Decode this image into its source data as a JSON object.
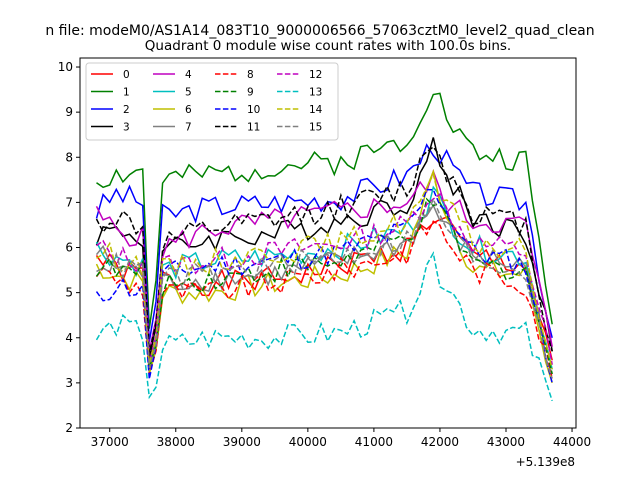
{
  "chart_data": {
    "type": "line",
    "suptitle": "n file: modeM0/AS1A14_083T10_9000006566_57063cztM0_level2_quad_clean",
    "title": "Quadrant 0 module wise count rates with 100.0s bins.",
    "xlabel": "",
    "ylabel": "",
    "offset_label": "+5.139e8",
    "xlim": [
      36550,
      44060
    ],
    "ylim": [
      2,
      10.2
    ],
    "xticks": [
      37000,
      38000,
      39000,
      40000,
      41000,
      42000,
      43000,
      44000
    ],
    "yticks": [
      2,
      3,
      4,
      5,
      6,
      7,
      8,
      9,
      10
    ],
    "grid": false,
    "legend": {
      "placement": "top-left",
      "columns": 4
    },
    "x_range": [
      36800,
      43700
    ],
    "series": [
      {
        "name": "0",
        "color": "#ff0000",
        "dash": "solid",
        "knots": [
          [
            36800,
            5.8
          ],
          [
            37100,
            5.5
          ],
          [
            37500,
            5.4
          ],
          [
            37620,
            3.0
          ],
          [
            37800,
            5.3
          ],
          [
            38500,
            5.2
          ],
          [
            39500,
            5.3
          ],
          [
            40500,
            5.6
          ],
          [
            41500,
            6.0
          ],
          [
            41900,
            6.7
          ],
          [
            42100,
            6.5
          ],
          [
            42500,
            5.8
          ],
          [
            43300,
            5.6
          ],
          [
            43700,
            3.5
          ]
        ]
      },
      {
        "name": "1",
        "color": "#008000",
        "dash": "solid",
        "knots": [
          [
            36800,
            7.5
          ],
          [
            37100,
            7.6
          ],
          [
            37500,
            7.7
          ],
          [
            37620,
            3.5
          ],
          [
            37800,
            7.5
          ],
          [
            38500,
            7.6
          ],
          [
            39500,
            7.8
          ],
          [
            40500,
            7.9
          ],
          [
            41500,
            8.4
          ],
          [
            41900,
            9.6
          ],
          [
            42100,
            8.9
          ],
          [
            42500,
            8.1
          ],
          [
            43300,
            7.9
          ],
          [
            43700,
            4.3
          ]
        ]
      },
      {
        "name": "2",
        "color": "#0000ff",
        "dash": "solid",
        "knots": [
          [
            36800,
            6.8
          ],
          [
            37100,
            7.2
          ],
          [
            37500,
            7.0
          ],
          [
            37620,
            3.3
          ],
          [
            37800,
            6.7
          ],
          [
            38500,
            6.9
          ],
          [
            39500,
            7.0
          ],
          [
            40500,
            7.1
          ],
          [
            41500,
            7.6
          ],
          [
            41900,
            8.3
          ],
          [
            42100,
            7.9
          ],
          [
            42500,
            7.2
          ],
          [
            43300,
            7.0
          ],
          [
            43700,
            4.0
          ]
        ]
      },
      {
        "name": "3",
        "color": "#000000",
        "dash": "solid",
        "knots": [
          [
            36800,
            6.3
          ],
          [
            37100,
            6.4
          ],
          [
            37500,
            6.2
          ],
          [
            37620,
            3.0
          ],
          [
            37800,
            5.9
          ],
          [
            38500,
            6.2
          ],
          [
            39500,
            6.3
          ],
          [
            40500,
            6.6
          ],
          [
            41500,
            7.0
          ],
          [
            41900,
            8.2
          ],
          [
            42100,
            7.6
          ],
          [
            42500,
            6.7
          ],
          [
            43300,
            6.3
          ],
          [
            43700,
            3.7
          ]
        ]
      },
      {
        "name": "4",
        "color": "#bf00bf",
        "dash": "solid",
        "knots": [
          [
            36800,
            6.7
          ],
          [
            37100,
            6.4
          ],
          [
            37500,
            6.2
          ],
          [
            37620,
            3.2
          ],
          [
            37800,
            6.0
          ],
          [
            38500,
            6.4
          ],
          [
            39500,
            6.6
          ],
          [
            40500,
            6.8
          ],
          [
            41500,
            7.0
          ],
          [
            41900,
            7.5
          ],
          [
            42100,
            7.0
          ],
          [
            42500,
            6.6
          ],
          [
            43300,
            6.5
          ],
          [
            43700,
            3.8
          ]
        ]
      },
      {
        "name": "5",
        "color": "#00bfbf",
        "dash": "solid",
        "knots": [
          [
            36800,
            6.0
          ],
          [
            37100,
            5.8
          ],
          [
            37500,
            5.6
          ],
          [
            37620,
            2.9
          ],
          [
            37800,
            5.5
          ],
          [
            38500,
            5.7
          ],
          [
            39500,
            5.8
          ],
          [
            40500,
            6.0
          ],
          [
            41500,
            6.4
          ],
          [
            41900,
            7.2
          ],
          [
            42100,
            6.7
          ],
          [
            42500,
            6.0
          ],
          [
            43300,
            5.8
          ],
          [
            43700,
            3.3
          ]
        ]
      },
      {
        "name": "6",
        "color": "#bfbf00",
        "dash": "solid",
        "knots": [
          [
            36800,
            5.6
          ],
          [
            37100,
            5.4
          ],
          [
            37500,
            5.2
          ],
          [
            37620,
            2.8
          ],
          [
            37800,
            5.0
          ],
          [
            38500,
            5.0
          ],
          [
            39500,
            5.2
          ],
          [
            40500,
            5.4
          ],
          [
            41500,
            5.9
          ],
          [
            41900,
            7.6
          ],
          [
            42100,
            6.8
          ],
          [
            42500,
            5.5
          ],
          [
            43300,
            5.4
          ],
          [
            43700,
            3.0
          ]
        ]
      },
      {
        "name": "7",
        "color": "#808080",
        "dash": "solid",
        "knots": [
          [
            36800,
            5.9
          ],
          [
            37100,
            5.6
          ],
          [
            37500,
            5.4
          ],
          [
            37620,
            2.9
          ],
          [
            37800,
            5.2
          ],
          [
            38500,
            5.3
          ],
          [
            39500,
            5.4
          ],
          [
            40500,
            5.7
          ],
          [
            41500,
            6.1
          ],
          [
            41900,
            6.9
          ],
          [
            42100,
            6.4
          ],
          [
            42500,
            5.8
          ],
          [
            43300,
            5.6
          ],
          [
            43700,
            3.2
          ]
        ]
      },
      {
        "name": "8",
        "color": "#ff0000",
        "dash": "dashed",
        "knots": [
          [
            36800,
            5.5
          ],
          [
            37100,
            5.3
          ],
          [
            37500,
            5.1
          ],
          [
            37620,
            2.8
          ],
          [
            37800,
            5.0
          ],
          [
            38500,
            5.0
          ],
          [
            39500,
            5.2
          ],
          [
            40500,
            5.5
          ],
          [
            41500,
            5.9
          ],
          [
            41900,
            6.6
          ],
          [
            42100,
            6.2
          ],
          [
            42500,
            5.5
          ],
          [
            43300,
            5.2
          ],
          [
            43700,
            3.1
          ]
        ]
      },
      {
        "name": "9",
        "color": "#008000",
        "dash": "dashed",
        "knots": [
          [
            36800,
            5.6
          ],
          [
            37100,
            5.5
          ],
          [
            37500,
            5.4
          ],
          [
            37620,
            2.9
          ],
          [
            37800,
            5.2
          ],
          [
            38500,
            5.3
          ],
          [
            39500,
            5.5
          ],
          [
            40500,
            5.7
          ],
          [
            41500,
            6.2
          ],
          [
            41900,
            7.0
          ],
          [
            42100,
            6.5
          ],
          [
            42500,
            5.6
          ],
          [
            43300,
            5.5
          ],
          [
            43700,
            3.2
          ]
        ]
      },
      {
        "name": "10",
        "color": "#0000ff",
        "dash": "dashed",
        "knots": [
          [
            36800,
            4.8
          ],
          [
            37100,
            5.2
          ],
          [
            37500,
            5.0
          ],
          [
            37620,
            2.7
          ],
          [
            37800,
            5.4
          ],
          [
            38500,
            5.6
          ],
          [
            39500,
            5.7
          ],
          [
            40500,
            5.9
          ],
          [
            41500,
            6.4
          ],
          [
            41900,
            7.4
          ],
          [
            42100,
            6.8
          ],
          [
            42500,
            5.9
          ],
          [
            43300,
            5.6
          ],
          [
            43700,
            3.0
          ]
        ]
      },
      {
        "name": "11",
        "color": "#000000",
        "dash": "dashed",
        "knots": [
          [
            36800,
            6.5
          ],
          [
            37100,
            6.7
          ],
          [
            37500,
            6.4
          ],
          [
            37620,
            3.1
          ],
          [
            37800,
            6.1
          ],
          [
            38500,
            6.4
          ],
          [
            39500,
            6.6
          ],
          [
            40500,
            6.9
          ],
          [
            41500,
            7.3
          ],
          [
            41900,
            8.4
          ],
          [
            42100,
            7.7
          ],
          [
            42500,
            6.8
          ],
          [
            43300,
            6.5
          ],
          [
            43700,
            3.7
          ]
        ]
      },
      {
        "name": "12",
        "color": "#bf00bf",
        "dash": "dashed",
        "knots": [
          [
            36800,
            6.0
          ],
          [
            37100,
            5.8
          ],
          [
            37500,
            5.7
          ],
          [
            37620,
            3.0
          ],
          [
            37800,
            5.6
          ],
          [
            38500,
            5.7
          ],
          [
            39500,
            5.9
          ],
          [
            40500,
            6.1
          ],
          [
            41500,
            6.5
          ],
          [
            41900,
            7.3
          ],
          [
            42100,
            6.8
          ],
          [
            42500,
            6.1
          ],
          [
            43300,
            5.9
          ],
          [
            43700,
            3.4
          ]
        ]
      },
      {
        "name": "13",
        "color": "#00bfbf",
        "dash": "dashed",
        "knots": [
          [
            36800,
            4.0
          ],
          [
            37100,
            4.3
          ],
          [
            37500,
            4.1
          ],
          [
            37620,
            2.4
          ],
          [
            37800,
            3.8
          ],
          [
            38500,
            4.0
          ],
          [
            39500,
            4.0
          ],
          [
            40500,
            4.1
          ],
          [
            41500,
            4.6
          ],
          [
            41900,
            5.6
          ],
          [
            42100,
            5.2
          ],
          [
            42500,
            4.2
          ],
          [
            43300,
            4.1
          ],
          [
            43700,
            2.6
          ]
        ]
      },
      {
        "name": "14",
        "color": "#bfbf00",
        "dash": "dashed",
        "knots": [
          [
            36800,
            5.9
          ],
          [
            37100,
            5.8
          ],
          [
            37500,
            5.6
          ],
          [
            37620,
            3.0
          ],
          [
            37800,
            5.5
          ],
          [
            38500,
            5.7
          ],
          [
            39500,
            5.9
          ],
          [
            40500,
            6.1
          ],
          [
            41500,
            6.6
          ],
          [
            41900,
            7.4
          ],
          [
            42100,
            6.9
          ],
          [
            42500,
            6.1
          ],
          [
            43300,
            5.9
          ],
          [
            43700,
            3.3
          ]
        ]
      },
      {
        "name": "15",
        "color": "#808080",
        "dash": "dashed",
        "knots": [
          [
            36800,
            5.7
          ],
          [
            37100,
            5.6
          ],
          [
            37500,
            5.5
          ],
          [
            37620,
            2.9
          ],
          [
            37800,
            5.3
          ],
          [
            38500,
            5.4
          ],
          [
            39500,
            5.6
          ],
          [
            40500,
            5.8
          ],
          [
            41500,
            6.2
          ],
          [
            41900,
            6.9
          ],
          [
            42100,
            6.5
          ],
          [
            42500,
            5.7
          ],
          [
            43300,
            5.5
          ],
          [
            43700,
            3.1
          ]
        ]
      }
    ]
  }
}
